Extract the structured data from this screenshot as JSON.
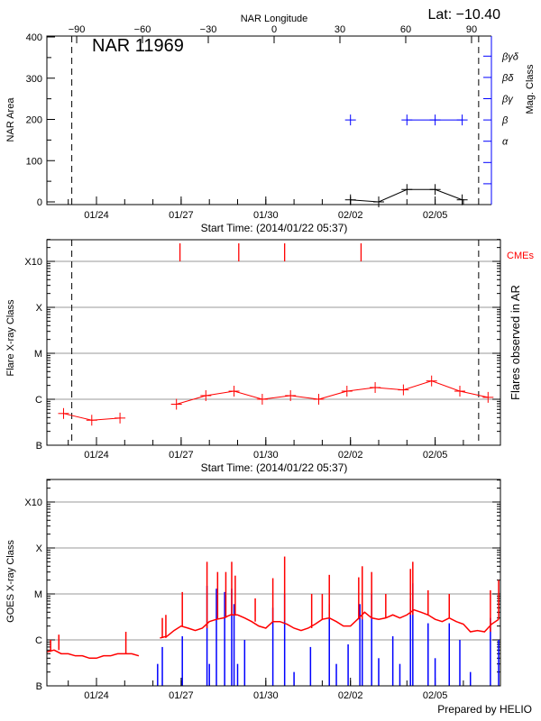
{
  "header": {
    "lat_label": "Lat: −10.40"
  },
  "colors": {
    "flare": "#ff0000",
    "cme": "#ff0000",
    "goes_long": "#ff0000",
    "goes_short": "#0000ff",
    "mag_class": "#0000ff",
    "area": "#000000",
    "grid": "#999999"
  },
  "chart_data": [
    {
      "type": "line",
      "title": "NAR 11969",
      "xlabel": "Start Time: (2014/01/22 05:37)",
      "xlim": [
        "2014-01-22 05:37",
        "2014-02-07 07:30"
      ],
      "x_ticks": [
        {
          "t": "2014-01-24 00:00",
          "label": "01/24"
        },
        {
          "t": "2014-01-27 00:00",
          "label": "01/27"
        },
        {
          "t": "2014-01-30 00:00",
          "label": "01/30"
        },
        {
          "t": "2014-02-02 00:00",
          "label": "02/02"
        },
        {
          "t": "2014-02-05 00:00",
          "label": "02/05"
        }
      ],
      "top_axis_label": "NAR Longitude",
      "top_ticks": [
        {
          "lon": -90,
          "label": "−90"
        },
        {
          "lon": -60,
          "label": "−60"
        },
        {
          "lon": -30,
          "label": "−30"
        },
        {
          "lon": 0,
          "label": "0"
        },
        {
          "lon": 30,
          "label": "30"
        },
        {
          "lon": 60,
          "label": "60"
        },
        {
          "lon": 90,
          "label": "90"
        }
      ],
      "ylabel": "NAR Area",
      "ylim": [
        0,
        400
      ],
      "y_ticks": [
        0,
        100,
        200,
        300,
        400
      ],
      "right_axis_label": "Mag. Class",
      "mag_class_ticks": [
        "",
        "",
        "α",
        "β",
        "βγ",
        "βδ",
        "βγδ"
      ],
      "limb_times": [
        "2014-01-23 03:00",
        "2014-02-06 13:00"
      ],
      "area_points": [
        {
          "t": "2014-02-02 00:00",
          "value": 5
        },
        {
          "t": "2014-02-03 00:00",
          "value": 0
        },
        {
          "t": "2014-02-04 00:00",
          "value": 30
        },
        {
          "t": "2014-02-05 00:00",
          "value": 30
        },
        {
          "t": "2014-02-05 23:00",
          "value": 5
        }
      ],
      "mag_class_points": [
        {
          "t": "2014-02-02 00:00",
          "class": "β"
        },
        {
          "t": "2014-02-04 00:00",
          "class": "β"
        },
        {
          "t": "2014-02-05 00:00",
          "class": "β"
        },
        {
          "t": "2014-02-05 23:00",
          "class": "β"
        }
      ]
    },
    {
      "type": "line",
      "xlabel": "Start Time: (2014/01/22 05:37)",
      "xlim": [
        "2014-01-22 05:37",
        "2014-02-07 07:30"
      ],
      "x_ticks": [
        {
          "t": "2014-01-24 00:00",
          "label": "01/24"
        },
        {
          "t": "2014-01-27 00:00",
          "label": "01/27"
        },
        {
          "t": "2014-01-30 00:00",
          "label": "01/30"
        },
        {
          "t": "2014-02-02 00:00",
          "label": "02/02"
        },
        {
          "t": "2014-02-05 00:00",
          "label": "02/05"
        }
      ],
      "ylabel": "Flare X-ray Class",
      "right_label": "Flares observed in AR",
      "y_scale": "log",
      "ylim": [
        1e-07,
        0.003
      ],
      "y_ticks": [
        {
          "value": 1e-07,
          "label": "B"
        },
        {
          "value": 1e-06,
          "label": "C"
        },
        {
          "value": 1e-05,
          "label": "M"
        },
        {
          "value": 0.0001,
          "label": "X"
        },
        {
          "value": 0.001,
          "label": "X10"
        }
      ],
      "grid": true,
      "limb_times": [
        "2014-01-23 03:00",
        "2014-02-06 13:00"
      ],
      "cme_label": "CMEs",
      "cme_times": [
        "2014-01-26 23:00",
        "2014-01-29 01:00",
        "2014-01-30 16:00",
        "2014-02-02 09:00"
      ],
      "segments": [
        [
          {
            "t": "2014-01-22 20:00",
            "flux": 4.9e-07
          },
          {
            "t": "2014-01-23 20:00",
            "flux": 3.5e-07
          },
          {
            "t": "2014-01-24 20:00",
            "flux": 3.9e-07
          }
        ],
        [
          {
            "t": "2014-01-26 20:00",
            "flux": 7.8e-07
          },
          {
            "t": "2014-01-27 21:00",
            "flux": 1.2e-06
          },
          {
            "t": "2014-01-28 21:00",
            "flux": 1.5e-06
          },
          {
            "t": "2014-01-29 21:00",
            "flux": 1e-06
          },
          {
            "t": "2014-01-30 21:00",
            "flux": 1.2e-06
          },
          {
            "t": "2014-01-31 21:00",
            "flux": 1e-06
          },
          {
            "t": "2014-02-01 21:00",
            "flux": 1.5e-06
          },
          {
            "t": "2014-02-02 21:00",
            "flux": 1.8e-06
          },
          {
            "t": "2014-02-03 21:00",
            "flux": 1.6e-06
          },
          {
            "t": "2014-02-04 21:00",
            "flux": 2.5e-06
          },
          {
            "t": "2014-02-05 21:00",
            "flux": 1.5e-06
          },
          {
            "t": "2014-02-06 21:00",
            "flux": 1.1e-06
          }
        ]
      ]
    },
    {
      "type": "line",
      "xlim": [
        "2014-01-22 05:37",
        "2014-02-07 07:30"
      ],
      "x_ticks": [
        {
          "t": "2014-01-24 00:00",
          "label": "01/24"
        },
        {
          "t": "2014-01-27 00:00",
          "label": "01/27"
        },
        {
          "t": "2014-01-30 00:00",
          "label": "01/30"
        },
        {
          "t": "2014-02-02 00:00",
          "label": "02/02"
        },
        {
          "t": "2014-02-05 00:00",
          "label": "02/05"
        }
      ],
      "ylabel": "GOES X-ray Class",
      "y_scale": "log",
      "ylim": [
        1e-07,
        0.003
      ],
      "y_ticks": [
        {
          "value": 1e-07,
          "label": "B"
        },
        {
          "value": 1e-06,
          "label": "C"
        },
        {
          "value": 1e-05,
          "label": "M"
        },
        {
          "value": 0.0001,
          "label": "X"
        },
        {
          "value": 0.001,
          "label": "X10"
        }
      ],
      "grid": true,
      "long_channel_start": "2014-01-22 06:00",
      "long_channel_step_hours": 6,
      "long_channel_flux": [
        5.5e-07,
        6e-07,
        5e-07,
        5e-07,
        4.5e-07,
        4.5e-07,
        4e-07,
        4e-07,
        4.5e-07,
        4.5e-07,
        5e-07,
        5e-07,
        5e-07,
        4.5e-07,
        null,
        null,
        1.1e-06,
        1.2e-06,
        1.6e-06,
        2e-06,
        1.8e-06,
        1.6e-06,
        1.8e-06,
        2.5e-06,
        2.8e-06,
        3e-06,
        3.5e-06,
        3.5e-06,
        3e-06,
        2.5e-06,
        2e-06,
        1.8e-06,
        2.5e-06,
        2.5e-06,
        2.2e-06,
        1.8e-06,
        1.6e-06,
        1.8e-06,
        2.2e-06,
        2.8e-06,
        3e-06,
        2.5e-06,
        2e-06,
        2e-06,
        2.8e-06,
        4e-06,
        3e-06,
        2.8e-06,
        3e-06,
        3.5e-06,
        3e-06,
        3.5e-06,
        4.5e-06,
        4e-06,
        3.5e-06,
        2.8e-06,
        2.5e-06,
        3e-06,
        2.5e-06,
        2.2e-06,
        1.5e-06,
        1.6e-06,
        1.5e-06,
        2.2e-06,
        2.8e-06
      ],
      "long_channel_peaks": [
        {
          "t": "2014-01-22 09:00",
          "flux": 1e-06
        },
        {
          "t": "2014-01-22 16:00",
          "flux": 1.3e-06
        },
        {
          "t": "2014-01-25 01:00",
          "flux": 1.5e-06
        },
        {
          "t": "2014-01-26 08:00",
          "flux": 3e-06
        },
        {
          "t": "2014-01-26 11:00",
          "flux": 3.5e-06
        },
        {
          "t": "2014-01-27 01:00",
          "flux": 1.1e-05
        },
        {
          "t": "2014-01-27 22:00",
          "flux": 5e-05
        },
        {
          "t": "2014-01-28 07:00",
          "flux": 3e-05
        },
        {
          "t": "2014-01-28 14:00",
          "flux": 3e-05
        },
        {
          "t": "2014-01-28 19:00",
          "flux": 5e-05
        },
        {
          "t": "2014-01-28 22:00",
          "flux": 2.5e-05
        },
        {
          "t": "2014-01-29 15:00",
          "flux": 8e-06
        },
        {
          "t": "2014-01-30 06:00",
          "flux": 2.2e-05
        },
        {
          "t": "2014-01-30 16:00",
          "flux": 6.5e-05
        },
        {
          "t": "2014-01-31 15:00",
          "flux": 1e-05
        },
        {
          "t": "2014-02-01 00:00",
          "flux": 1e-05
        },
        {
          "t": "2014-02-01 06:00",
          "flux": 2.6e-05
        },
        {
          "t": "2014-02-02 07:00",
          "flux": 2.3e-05
        },
        {
          "t": "2014-02-02 10:00",
          "flux": 4e-05
        },
        {
          "t": "2014-02-02 18:00",
          "flux": 3e-05
        },
        {
          "t": "2014-02-03 06:00",
          "flux": 1e-05
        },
        {
          "t": "2014-02-04 03:00",
          "flux": 3.5e-05
        },
        {
          "t": "2014-02-04 05:00",
          "flux": 5e-05
        },
        {
          "t": "2014-02-04 18:00",
          "flux": 1.2e-05
        },
        {
          "t": "2014-02-05 12:00",
          "flux": 1e-05
        },
        {
          "t": "2014-02-06 23:00",
          "flux": 1.2e-05
        },
        {
          "t": "2014-02-07 06:00",
          "flux": 2e-05
        }
      ],
      "short_channel_peaks": [
        {
          "t": "2014-01-26 04:00",
          "flux": 3e-07
        },
        {
          "t": "2014-01-26 08:00",
          "flux": 7e-07
        },
        {
          "t": "2014-01-27 01:00",
          "flux": 1.2e-06
        },
        {
          "t": "2014-01-27 22:00",
          "flux": 1.5e-05
        },
        {
          "t": "2014-01-28 00:00",
          "flux": 3e-07
        },
        {
          "t": "2014-01-28 06:00",
          "flux": 1.3e-05
        },
        {
          "t": "2014-01-28 13:00",
          "flux": 1.1e-05
        },
        {
          "t": "2014-01-28 19:00",
          "flux": 1.3e-05
        },
        {
          "t": "2014-01-28 21:00",
          "flux": 6e-06
        },
        {
          "t": "2014-01-29 00:00",
          "flux": 3e-07
        },
        {
          "t": "2014-01-29 06:00",
          "flux": 1e-06
        },
        {
          "t": "2014-01-30 06:00",
          "flux": 5e-06
        },
        {
          "t": "2014-01-30 16:00",
          "flux": 1e-05
        },
        {
          "t": "2014-01-31 00:00",
          "flux": 2e-07
        },
        {
          "t": "2014-01-31 14:00",
          "flux": 7e-07
        },
        {
          "t": "2014-02-01 06:00",
          "flux": 6e-06
        },
        {
          "t": "2014-02-01 12:00",
          "flux": 3e-07
        },
        {
          "t": "2014-02-01 22:00",
          "flux": 8e-07
        },
        {
          "t": "2014-02-02 08:00",
          "flux": 6e-06
        },
        {
          "t": "2014-02-02 10:00",
          "flux": 1.6e-05
        },
        {
          "t": "2014-02-02 18:00",
          "flux": 1e-05
        },
        {
          "t": "2014-02-03 00:00",
          "flux": 4e-07
        },
        {
          "t": "2014-02-03 12:00",
          "flux": 1.2e-06
        },
        {
          "t": "2014-02-03 18:00",
          "flux": 3e-07
        },
        {
          "t": "2014-02-04 03:00",
          "flux": 8e-06
        },
        {
          "t": "2014-02-04 05:00",
          "flux": 1.7e-05
        },
        {
          "t": "2014-02-04 18:00",
          "flux": 2.3e-06
        },
        {
          "t": "2014-02-05 00:00",
          "flux": 4e-07
        },
        {
          "t": "2014-02-05 12:00",
          "flux": 2.3e-06
        },
        {
          "t": "2014-02-05 21:00",
          "flux": 1e-06
        },
        {
          "t": "2014-02-06 06:00",
          "flux": 2e-07
        },
        {
          "t": "2014-02-06 23:00",
          "flux": 3e-06
        },
        {
          "t": "2014-02-07 06:00",
          "flux": 1e-06
        }
      ]
    }
  ],
  "footer": {
    "credit": "Prepared by HELIO"
  }
}
